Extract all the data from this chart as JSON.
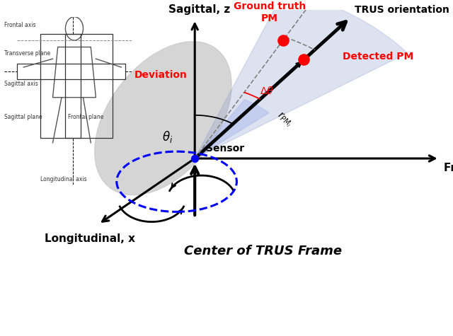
{
  "bg_color": "#ffffff",
  "ox": 0.43,
  "oy": 0.52,
  "z_label": "Sagittal, z",
  "y_label": "Frontal, y",
  "x_label": "Longitudinal, x",
  "trus_label": "TRUS orientation",
  "ground_truth_label": "Ground truth\nPM",
  "detected_label": "Detected PM",
  "sensor_label": "Sensor",
  "deviation_label": "Deviation",
  "center_label": "Center of TRUS Frame",
  "inset_labels": [
    "Frontal axis",
    "Transverse plane",
    "Sagittal axis",
    "Sagittal plane",
    "Frontal plane",
    "Longitudinal axis"
  ]
}
